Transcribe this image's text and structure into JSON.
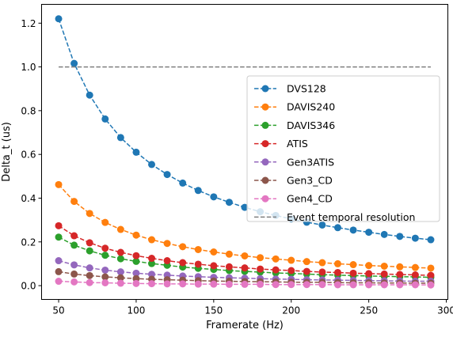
{
  "chart_data": {
    "type": "line",
    "title": "",
    "xlabel": "Framerate (Hz)",
    "ylabel": "Delta_t (us)",
    "xlim": [
      39,
      301
    ],
    "ylim": [
      -0.063,
      1.286
    ],
    "xticks": [
      50,
      100,
      150,
      200,
      250,
      300
    ],
    "yticks": [
      0.0,
      0.2,
      0.4,
      0.6,
      0.8,
      1.0,
      1.2
    ],
    "xtick_labels": [
      "50",
      "100",
      "150",
      "200",
      "250",
      "300"
    ],
    "ytick_labels": [
      "0.0",
      "0.2",
      "0.4",
      "0.6",
      "0.8",
      "1.0",
      "1.2"
    ],
    "grid": false,
    "legend_position": "center-right",
    "x": [
      50,
      60,
      70,
      80,
      90,
      100,
      110,
      120,
      130,
      140,
      150,
      160,
      170,
      180,
      190,
      200,
      210,
      220,
      230,
      240,
      250,
      260,
      270,
      280,
      290
    ],
    "series": [
      {
        "name": "DVS128",
        "color": "#1f77b4",
        "style": "dashed-marker",
        "values": [
          1.22,
          1.016,
          0.871,
          0.762,
          0.677,
          0.61,
          0.554,
          0.508,
          0.469,
          0.435,
          0.406,
          0.381,
          0.358,
          0.338,
          0.321,
          0.305,
          0.29,
          0.277,
          0.265,
          0.254,
          0.244,
          0.234,
          0.225,
          0.217,
          0.21
        ]
      },
      {
        "name": "DAVIS240",
        "color": "#ff7f0e",
        "style": "dashed-marker",
        "values": [
          0.462,
          0.385,
          0.33,
          0.289,
          0.257,
          0.231,
          0.21,
          0.193,
          0.178,
          0.165,
          0.154,
          0.144,
          0.136,
          0.128,
          0.122,
          0.116,
          0.11,
          0.105,
          0.1,
          0.096,
          0.092,
          0.089,
          0.086,
          0.083,
          0.08
        ]
      },
      {
        "name": "DAVIS346",
        "color": "#2ca02c",
        "style": "dashed-marker",
        "values": [
          0.222,
          0.185,
          0.159,
          0.139,
          0.123,
          0.111,
          0.101,
          0.093,
          0.085,
          0.079,
          0.074,
          0.069,
          0.065,
          0.062,
          0.058,
          0.056,
          0.053,
          0.05,
          0.048,
          0.046,
          0.044,
          0.043,
          0.041,
          0.04,
          0.038
        ]
      },
      {
        "name": "ATIS",
        "color": "#d62728",
        "style": "dashed-marker",
        "values": [
          0.274,
          0.228,
          0.196,
          0.171,
          0.152,
          0.137,
          0.125,
          0.114,
          0.105,
          0.098,
          0.091,
          0.086,
          0.081,
          0.076,
          0.072,
          0.069,
          0.065,
          0.062,
          0.06,
          0.057,
          0.055,
          0.053,
          0.051,
          0.049,
          0.047
        ]
      },
      {
        "name": "Gen3ATIS",
        "color": "#9467bd",
        "style": "dashed-marker",
        "values": [
          0.114,
          0.095,
          0.081,
          0.071,
          0.063,
          0.057,
          0.052,
          0.048,
          0.044,
          0.041,
          0.038,
          0.036,
          0.034,
          0.032,
          0.03,
          0.029,
          0.027,
          0.026,
          0.025,
          0.024,
          0.023,
          0.022,
          0.021,
          0.02,
          0.02
        ]
      },
      {
        "name": "Gen3_CD",
        "color": "#8c564b",
        "style": "dashed-marker",
        "values": [
          0.064,
          0.053,
          0.046,
          0.04,
          0.036,
          0.032,
          0.029,
          0.027,
          0.025,
          0.023,
          0.021,
          0.02,
          0.019,
          0.018,
          0.017,
          0.016,
          0.015,
          0.015,
          0.014,
          0.013,
          0.013,
          0.012,
          0.012,
          0.011,
          0.011
        ]
      },
      {
        "name": "Gen4_CD",
        "color": "#e377c2",
        "style": "dashed-marker",
        "values": [
          0.02,
          0.017,
          0.014,
          0.013,
          0.011,
          0.01,
          0.009,
          0.008,
          0.008,
          0.007,
          0.007,
          0.006,
          0.006,
          0.006,
          0.005,
          0.005,
          0.005,
          0.005,
          0.004,
          0.004,
          0.004,
          0.004,
          0.004,
          0.004,
          0.003
        ]
      },
      {
        "name": "Event temporal resolution",
        "color": "#7f7f7f",
        "style": "dashed",
        "x": [
          50,
          290
        ],
        "values": [
          1.0,
          1.0
        ]
      }
    ]
  }
}
